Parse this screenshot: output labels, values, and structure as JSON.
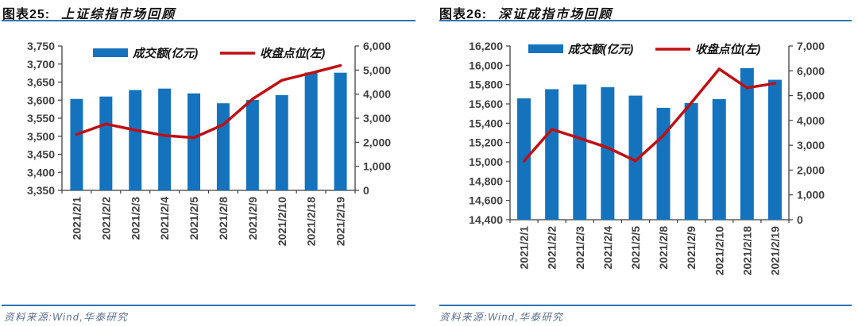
{
  "page": {
    "background": "#ffffff"
  },
  "colors": {
    "bar_blue": "#1573be",
    "line_red": "#c00f12",
    "rule_blue": "#2e74b5",
    "axis_text": "#404040",
    "axis_line": "#3f3f3f",
    "source_text": "#5b6e8f"
  },
  "charts": [
    {
      "title_prefix": "图表25:",
      "title": "上证综指市场回顾",
      "source": "资料来源:Wind,华泰研究",
      "chart_data": {
        "type": "bar+line",
        "categories": [
          "2021/2/1",
          "2021/2/2",
          "2021/2/3",
          "2021/2/4",
          "2021/2/5",
          "2021/2/8",
          "2021/2/9",
          "2021/2/10",
          "2021/2/18",
          "2021/2/19"
        ],
        "series": [
          {
            "name": "成交额(亿元)",
            "type": "bar",
            "axis": "right",
            "color": "#1573be",
            "values": [
              3800,
              3900,
              4170,
              4230,
              4030,
              3620,
              3760,
              3960,
              4900,
              4890
            ]
          },
          {
            "name": "收盘点位(左)",
            "type": "line",
            "axis": "left",
            "color": "#c00f12",
            "values": [
              3505,
              3534,
              3517,
              3502,
              3496,
              3532,
              3603,
              3655,
              3675,
              3696
            ]
          }
        ],
        "left_axis": {
          "min": 3350,
          "max": 3750,
          "step": 50
        },
        "right_axis": {
          "min": 0,
          "max": 6000,
          "step": 1000
        },
        "legend_position": "top",
        "grid": false
      }
    },
    {
      "title_prefix": "图表26:",
      "title": "深证成指市场回顾",
      "source": "资料来源:Wind,华泰研究",
      "chart_data": {
        "type": "bar+line",
        "categories": [
          "2021/2/1",
          "2021/2/2",
          "2021/2/3",
          "2021/2/4",
          "2021/2/5",
          "2021/2/8",
          "2021/2/9",
          "2021/2/10",
          "2021/2/18",
          "2021/2/19"
        ],
        "series": [
          {
            "name": "成交额(亿元)",
            "type": "bar",
            "axis": "right",
            "color": "#1573be",
            "values": [
              4890,
              5260,
              5450,
              5340,
              5000,
              4510,
              4700,
              4860,
              6110,
              5640
            ]
          },
          {
            "name": "收盘点位(左)",
            "type": "line",
            "axis": "left",
            "color": "#c00f12",
            "values": [
              15007,
              15337,
              15244,
              15147,
              15010,
              15273,
              15611,
              15962,
              15766,
              15813
            ]
          }
        ],
        "left_axis": {
          "min": 14400,
          "max": 16200,
          "step": 200
        },
        "right_axis": {
          "min": 0,
          "max": 7000,
          "step": 1000
        },
        "legend_position": "top",
        "grid": false
      }
    }
  ]
}
